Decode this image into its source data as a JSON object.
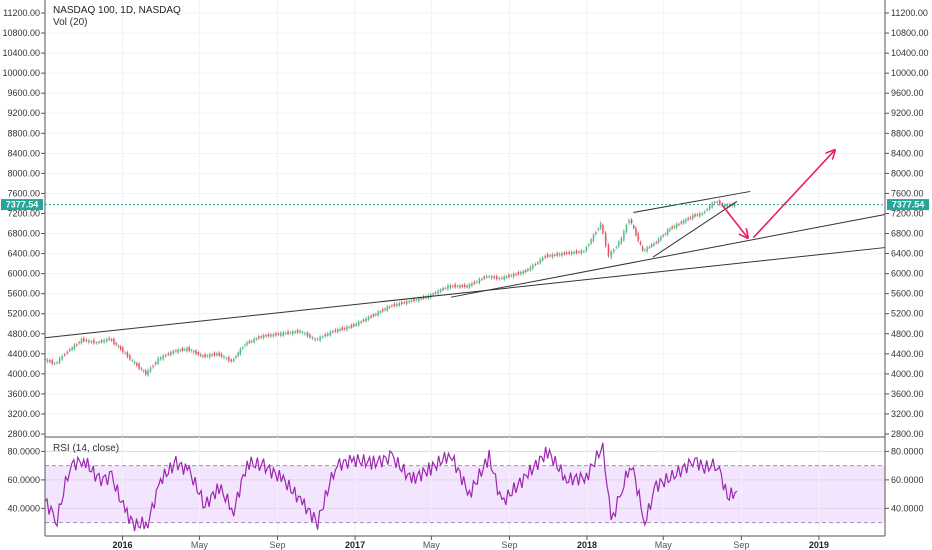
{
  "chart_data": [
    {
      "type": "line",
      "panel": "price",
      "title": "NASDAQ 100, 1D, NASDAQ",
      "subtitle": "Vol (20)",
      "ylim": [
        2800,
        11300
      ],
      "y_ticks": [
        2800,
        3200,
        3600,
        4000,
        4400,
        4800,
        5200,
        5600,
        6000,
        6400,
        6800,
        7200,
        7600,
        8000,
        8400,
        8800,
        9200,
        9600,
        10000,
        10400,
        10800,
        11200
      ],
      "y_tick_labels": [
        "2800.00",
        "3200.00",
        "3600.00",
        "4000.00",
        "4400.00",
        "4800.00",
        "5200.00",
        "5600.00",
        "6000.00",
        "6400.00",
        "6800.00",
        "7200.00",
        "7600.00",
        "8000.00",
        "8400.00",
        "8800.00",
        "9200.00",
        "9600.00",
        "10000.00",
        "10400.00",
        "10800.00",
        "11200.00"
      ],
      "x_tick_labels": [
        {
          "x": "2016-01-01",
          "label": "2016",
          "year": true
        },
        {
          "x": "2016-05-01",
          "label": "May",
          "year": false
        },
        {
          "x": "2016-09-01",
          "label": "Sep",
          "year": false
        },
        {
          "x": "2017-01-01",
          "label": "2017",
          "year": true
        },
        {
          "x": "2017-05-01",
          "label": "May",
          "year": false
        },
        {
          "x": "2017-09-01",
          "label": "Sep",
          "year": false
        },
        {
          "x": "2018-01-01",
          "label": "2018",
          "year": true
        },
        {
          "x": "2018-05-01",
          "label": "May",
          "year": false
        },
        {
          "x": "2018-09-01",
          "label": "Sep",
          "year": false
        },
        {
          "x": "2019-01-01",
          "label": "2019",
          "year": true
        }
      ],
      "xlim": [
        "2015-09-01",
        "2019-04-15"
      ],
      "last_price": 7377.54,
      "last_price_label": "7377.54",
      "colors": {
        "up": "#53b987",
        "down": "#eb4d5c",
        "trendline": "#333333",
        "arrow": "#e91e63",
        "price_tag": "#26a69a"
      },
      "series": [
        {
          "x": [
            "2015-09-01",
            "2015-09-20",
            "2015-10-10",
            "2015-11-01",
            "2015-11-25",
            "2015-12-15",
            "2016-01-05",
            "2016-01-20",
            "2016-02-10",
            "2016-03-01",
            "2016-03-25",
            "2016-04-15",
            "2016-05-10",
            "2016-06-01",
            "2016-06-24",
            "2016-07-15",
            "2016-08-10",
            "2016-09-10",
            "2016-10-10",
            "2016-11-03",
            "2016-12-01",
            "2016-12-30",
            "2017-01-30",
            "2017-02-28",
            "2017-03-31",
            "2017-04-30",
            "2017-05-31",
            "2017-06-30",
            "2017-07-31",
            "2017-08-20",
            "2017-09-30",
            "2017-10-31",
            "2017-11-30",
            "2017-12-31",
            "2018-01-26",
            "2018-02-08",
            "2018-02-28",
            "2018-03-12",
            "2018-04-02",
            "2018-04-20",
            "2018-05-15",
            "2018-06-20",
            "2018-07-05",
            "2018-07-25",
            "2018-08-10",
            "2018-08-25"
          ],
          "y": [
            4300,
            4200,
            4450,
            4680,
            4620,
            4700,
            4450,
            4250,
            4000,
            4300,
            4450,
            4500,
            4350,
            4400,
            4250,
            4600,
            4750,
            4800,
            4850,
            4680,
            4850,
            4950,
            5150,
            5350,
            5450,
            5550,
            5750,
            5750,
            5950,
            5900,
            6050,
            6350,
            6400,
            6450,
            7000,
            6350,
            6700,
            7100,
            6450,
            6600,
            6900,
            7150,
            7200,
            7450,
            7350,
            7377.54
          ]
        }
      ],
      "drawings": [
        {
          "kind": "trendline",
          "x1": "2015-09-01",
          "y1": 4720,
          "x2": "2019-04-15",
          "y2": 6520
        },
        {
          "kind": "trendline",
          "x1": "2017-06-01",
          "y1": 5530,
          "x2": "2019-04-15",
          "y2": 7180
        },
        {
          "kind": "trendline",
          "x1": "2018-03-15",
          "y1": 7220,
          "x2": "2018-09-15",
          "y2": 7640
        },
        {
          "kind": "trendline",
          "x1": "2018-04-15",
          "y1": 6330,
          "x2": "2018-08-25",
          "y2": 7440
        },
        {
          "kind": "arrow",
          "x1": "2018-08-01",
          "y1": 7380,
          "x2": "2018-09-10",
          "y2": 6730
        },
        {
          "kind": "arrow",
          "x1": "2018-09-20",
          "y1": 6720,
          "x2": "2019-01-25",
          "y2": 8450
        }
      ]
    },
    {
      "type": "line",
      "panel": "rsi",
      "title": "RSI (14, close)",
      "ylim": [
        22,
        88
      ],
      "y_ticks": [
        40,
        60,
        80
      ],
      "y_tick_labels": [
        "40.0000",
        "60.0000",
        "80.0000"
      ],
      "band": [
        30,
        70
      ],
      "colors": {
        "line": "#9c27b0",
        "band_fill": "#f3e5fd"
      },
      "series": [
        {
          "x": [
            "2015-09-01",
            "2015-09-20",
            "2015-10-10",
            "2015-11-01",
            "2015-11-25",
            "2015-12-15",
            "2016-01-05",
            "2016-01-20",
            "2016-02-10",
            "2016-03-01",
            "2016-03-25",
            "2016-04-15",
            "2016-05-10",
            "2016-06-01",
            "2016-06-24",
            "2016-07-15",
            "2016-08-10",
            "2016-09-10",
            "2016-10-10",
            "2016-11-03",
            "2016-12-01",
            "2016-12-30",
            "2017-01-30",
            "2017-02-28",
            "2017-03-31",
            "2017-04-30",
            "2017-05-31",
            "2017-06-30",
            "2017-07-31",
            "2017-08-20",
            "2017-09-30",
            "2017-10-31",
            "2017-11-30",
            "2017-12-31",
            "2018-01-26",
            "2018-02-08",
            "2018-02-28",
            "2018-03-12",
            "2018-04-02",
            "2018-04-20",
            "2018-05-15",
            "2018-06-20",
            "2018-07-05",
            "2018-07-25",
            "2018-08-10",
            "2018-08-25"
          ],
          "y": [
            45,
            32,
            70,
            74,
            60,
            62,
            38,
            28,
            30,
            60,
            72,
            66,
            42,
            55,
            38,
            72,
            70,
            60,
            44,
            30,
            70,
            74,
            72,
            76,
            60,
            68,
            78,
            50,
            76,
            44,
            64,
            80,
            60,
            62,
            84,
            30,
            58,
            72,
            30,
            56,
            62,
            74,
            68,
            72,
            48,
            52
          ]
        }
      ]
    }
  ]
}
